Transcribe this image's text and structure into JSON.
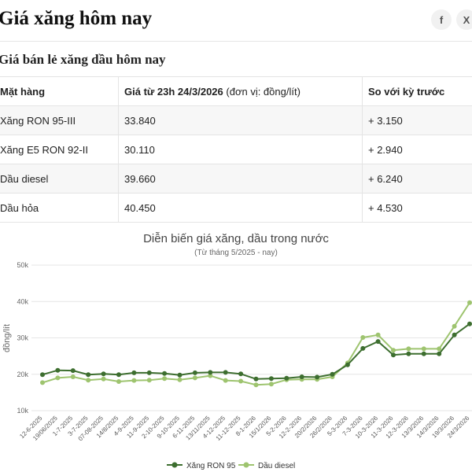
{
  "header": {
    "title": "Giá xăng hôm nay",
    "share": [
      {
        "icon": "facebook-icon",
        "glyph": "f"
      },
      {
        "icon": "x-icon",
        "glyph": "X"
      }
    ]
  },
  "table": {
    "title": "Giá bán lẻ xăng dầu hôm nay",
    "headers": {
      "item": "Mặt hàng",
      "price": "Giá từ 23h 24/3/2026",
      "price_unit": " (đơn vị: đồng/lít)",
      "change": "So với kỳ trước"
    },
    "rows": [
      {
        "item": "Xăng RON 95-III",
        "price": "33.840",
        "change": "+ 3.150"
      },
      {
        "item": "Xăng E5 RON 92-II",
        "price": "30.110",
        "change": "+ 2.940"
      },
      {
        "item": "Dầu diesel",
        "price": "39.660",
        "change": "+ 6.240"
      },
      {
        "item": "Dầu hỏa",
        "price": "40.450",
        "change": "+ 4.530"
      }
    ]
  },
  "chart_data": {
    "type": "line",
    "title": "Diễn biến giá xăng, dầu trong nước",
    "subtitle": "(Từ tháng 5/2025 - nay)",
    "xlabel": "",
    "ylabel": "đồng/lít",
    "ylim": [
      10000,
      50000
    ],
    "yticks": [
      10000,
      20000,
      30000,
      40000,
      50000
    ],
    "ytick_labels": [
      "10k",
      "20k",
      "30k",
      "40k",
      "50k"
    ],
    "grid": true,
    "legend_position": "bottom",
    "categories": [
      "12-6-2025",
      "19/06/2025",
      "1-7-2025",
      "3-7-2025",
      "07-08-2025",
      "14/8/2025",
      "4-9-2025",
      "11-9-2025",
      "2-10-2025",
      "9-10-2025",
      "6-11-2025",
      "13/11/2025",
      "4-12-2025",
      "11-12-2025",
      "8-1-2026",
      "15/1/2026",
      "5-2-2026",
      "12-2-2026",
      "20/2/2026",
      "26/2/2026",
      "5-3-2026",
      "7-3-2026",
      "10-3-2026",
      "11-3-2026",
      "12-3-2026",
      "13/3/2026",
      "14/3/2026",
      "19/3/2026",
      "24/3/2026"
    ],
    "series": [
      {
        "name": "Xăng RON 95",
        "color": "#3d6e2f",
        "values": [
          19900,
          21100,
          21000,
          19900,
          20100,
          19900,
          20400,
          20400,
          20200,
          19800,
          20400,
          20500,
          20500,
          20100,
          18700,
          18800,
          18900,
          19300,
          19200,
          20000,
          22600,
          27100,
          29000,
          25300,
          25600,
          25600,
          25600,
          30800,
          33840
        ]
      },
      {
        "name": "Dầu diesel",
        "color": "#9ec46f",
        "values": [
          17700,
          19000,
          19300,
          18400,
          18700,
          18000,
          18300,
          18400,
          18800,
          18500,
          19000,
          19600,
          18300,
          18100,
          17100,
          17300,
          18500,
          18600,
          18600,
          19300,
          23100,
          30100,
          30800,
          26600,
          27000,
          27000,
          27000,
          33200,
          39660
        ]
      }
    ]
  }
}
